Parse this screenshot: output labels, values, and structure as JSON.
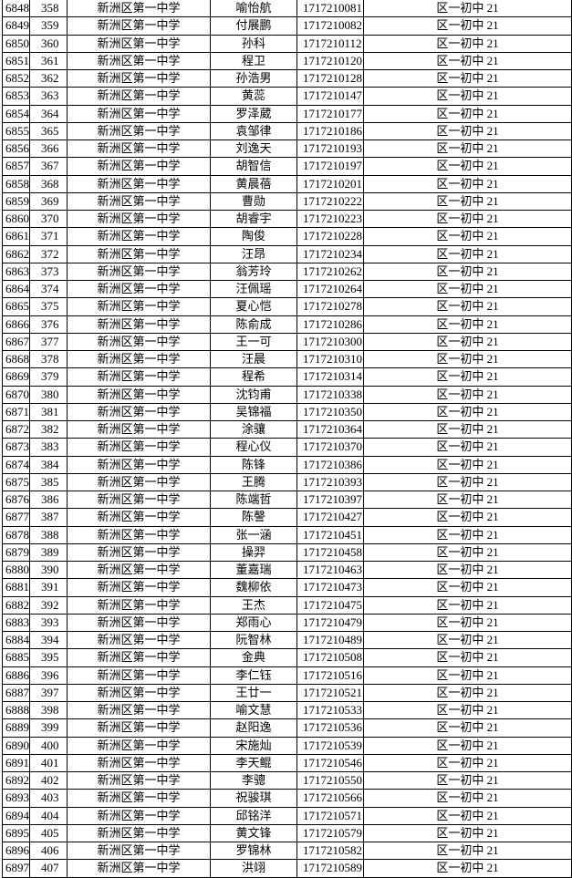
{
  "school": "新洲区第一中学",
  "class": "区一初中 21",
  "rows": [
    [
      "6848",
      "358",
      "喻怡航",
      "1717210081"
    ],
    [
      "6849",
      "359",
      "付展鹏",
      "1717210082"
    ],
    [
      "6850",
      "360",
      "孙科",
      "1717210112"
    ],
    [
      "6851",
      "361",
      "程卫",
      "1717210120"
    ],
    [
      "6852",
      "362",
      "孙浩男",
      "1717210128"
    ],
    [
      "6853",
      "363",
      "黄蕊",
      "1717210147"
    ],
    [
      "6854",
      "364",
      "罗泽葳",
      "1717210177"
    ],
    [
      "6855",
      "365",
      "袁邹律",
      "1717210186"
    ],
    [
      "6856",
      "366",
      "刘逸天",
      "1717210193"
    ],
    [
      "6857",
      "367",
      "胡智信",
      "1717210197"
    ],
    [
      "6858",
      "368",
      "黄晨蓓",
      "1717210201"
    ],
    [
      "6859",
      "369",
      "曹勋",
      "1717210222"
    ],
    [
      "6860",
      "370",
      "胡睿宇",
      "1717210223"
    ],
    [
      "6861",
      "371",
      "陶俊",
      "1717210228"
    ],
    [
      "6862",
      "372",
      "汪昂",
      "1717210234"
    ],
    [
      "6863",
      "373",
      "翁芳玲",
      "1717210262"
    ],
    [
      "6864",
      "374",
      "汪佩瑶",
      "1717210264"
    ],
    [
      "6865",
      "375",
      "夏心恺",
      "1717210278"
    ],
    [
      "6866",
      "376",
      "陈俞成",
      "1717210286"
    ],
    [
      "6867",
      "377",
      "王一可",
      "1717210300"
    ],
    [
      "6868",
      "378",
      "汪晨",
      "1717210310"
    ],
    [
      "6869",
      "379",
      "程希",
      "1717210314"
    ],
    [
      "6870",
      "380",
      "沈钧甫",
      "1717210338"
    ],
    [
      "6871",
      "381",
      "吴锦福",
      "1717210350"
    ],
    [
      "6872",
      "382",
      "涂骧",
      "1717210364"
    ],
    [
      "6873",
      "383",
      "程心仪",
      "1717210370"
    ],
    [
      "6874",
      "384",
      "陈锋",
      "1717210386"
    ],
    [
      "6875",
      "385",
      "王腾",
      "1717210393"
    ],
    [
      "6876",
      "386",
      "陈端哲",
      "1717210397"
    ],
    [
      "6877",
      "387",
      "陈謦",
      "1717210427"
    ],
    [
      "6878",
      "388",
      "张一涵",
      "1717210451"
    ],
    [
      "6879",
      "389",
      "操羿",
      "1717210458"
    ],
    [
      "6880",
      "390",
      "董嘉瑞",
      "1717210463"
    ],
    [
      "6881",
      "391",
      "魏柳依",
      "1717210473"
    ],
    [
      "6882",
      "392",
      "王杰",
      "1717210475"
    ],
    [
      "6883",
      "393",
      "郑雨心",
      "1717210479"
    ],
    [
      "6884",
      "394",
      "阮智林",
      "1717210489"
    ],
    [
      "6885",
      "395",
      "金典",
      "1717210508"
    ],
    [
      "6886",
      "396",
      "李仁钰",
      "1717210516"
    ],
    [
      "6887",
      "397",
      "王廿一",
      "1717210521"
    ],
    [
      "6888",
      "398",
      "喻文慧",
      "1717210533"
    ],
    [
      "6889",
      "399",
      "赵阳逸",
      "1717210536"
    ],
    [
      "6890",
      "400",
      "宋施灿",
      "1717210539"
    ],
    [
      "6891",
      "401",
      "李天鲲",
      "1717210546"
    ],
    [
      "6892",
      "402",
      "李骢",
      "1717210550"
    ],
    [
      "6893",
      "403",
      "祝骏琪",
      "1717210566"
    ],
    [
      "6894",
      "404",
      "邱铭洋",
      "1717210571"
    ],
    [
      "6895",
      "405",
      "黄文锋",
      "1717210579"
    ],
    [
      "6896",
      "406",
      "罗锦林",
      "1717210582"
    ],
    [
      "6897",
      "407",
      "洪翊",
      "1717210589"
    ]
  ]
}
